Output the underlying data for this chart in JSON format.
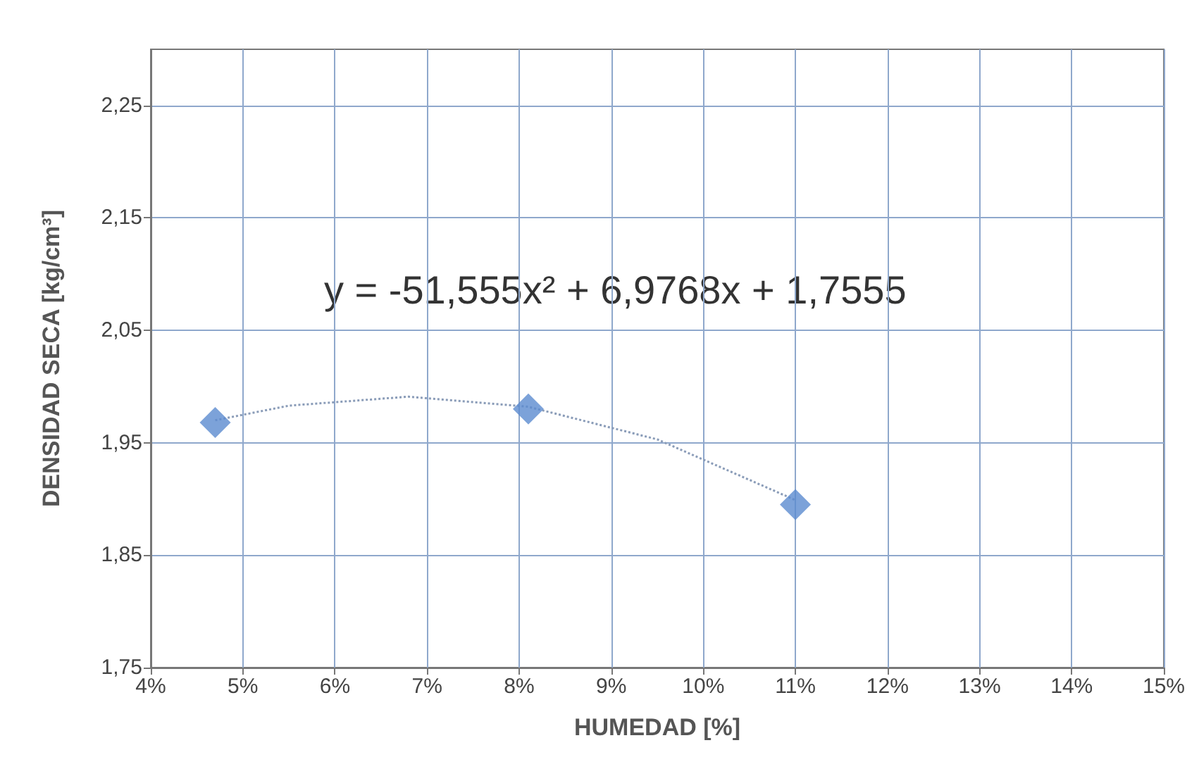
{
  "chart_data": {
    "type": "scatter",
    "xlabel": "HUMEDAD [%]",
    "ylabel": "DENSIDAD SECA [kg/cm³]",
    "annotations": [
      "y = -51,555x² + 6,9768x + 1,7555"
    ],
    "xlim": [
      0.04,
      0.15
    ],
    "xticks": [
      {
        "value": 0.04,
        "label": "4%"
      },
      {
        "value": 0.05,
        "label": "5%"
      },
      {
        "value": 0.06,
        "label": "6%"
      },
      {
        "value": 0.07,
        "label": "7%"
      },
      {
        "value": 0.08,
        "label": "8%"
      },
      {
        "value": 0.09,
        "label": "9%"
      },
      {
        "value": 0.1,
        "label": "10%"
      },
      {
        "value": 0.11,
        "label": "11%"
      },
      {
        "value": 0.12,
        "label": "12%"
      },
      {
        "value": 0.13,
        "label": "13%"
      },
      {
        "value": 0.14,
        "label": "14%"
      },
      {
        "value": 0.15,
        "label": "15%"
      }
    ],
    "ylim": [
      1.75,
      2.3
    ],
    "yticks": [
      {
        "value": 1.75,
        "label": "1,75"
      },
      {
        "value": 1.85,
        "label": "1,85"
      },
      {
        "value": 1.95,
        "label": "1,95"
      },
      {
        "value": 2.05,
        "label": "2,05"
      },
      {
        "value": 2.15,
        "label": "2,15"
      },
      {
        "value": 2.25,
        "label": "2,25"
      }
    ],
    "grid": true,
    "series": [
      {
        "color": "#5b8bd0",
        "marker": "diamond",
        "x": [
          0.047,
          0.081,
          0.11
        ],
        "values": [
          1.968,
          1.98,
          1.895
        ]
      },
      {
        "type": "line",
        "color": "#8a9cb8",
        "marker": "none",
        "line_style": "dotted",
        "x": [
          0.047,
          0.055,
          0.068,
          0.081,
          0.095,
          0.11
        ],
        "values": [
          1.97,
          1.983,
          1.991,
          1.982,
          1.953,
          1.899
        ]
      }
    ]
  }
}
